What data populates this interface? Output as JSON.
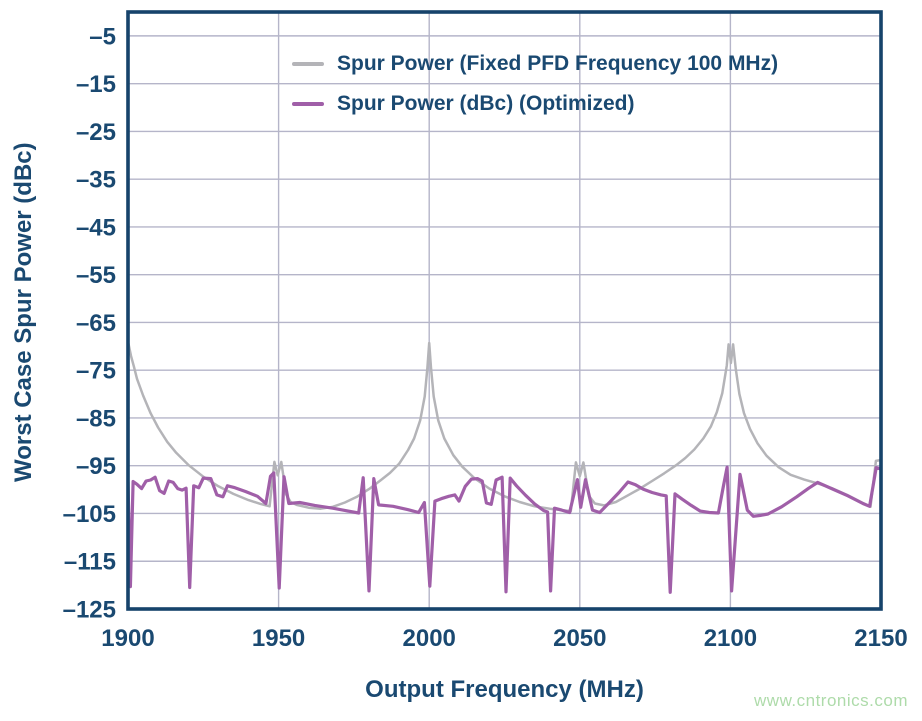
{
  "watermark": "www.cntronics.com",
  "colors": {
    "text": "#1a4971",
    "plot_border": "#16436b",
    "gridline": "#b5b5c9",
    "background": "#ffffff",
    "watermark": "#aedbaa",
    "series_fixed": "#b4b4b8",
    "series_optimized": "#a05fa8"
  },
  "chart_data": {
    "type": "line",
    "title": "",
    "xlabel": "Output Frequency (MHz)",
    "ylabel": "Worst Case Spur Power (dBc)",
    "xlim": [
      1900,
      2150
    ],
    "ylim": [
      -125,
      0
    ],
    "x_ticks": [
      1900,
      1950,
      2000,
      2050,
      2100,
      2150
    ],
    "y_ticks": [
      -5,
      -15,
      -25,
      -35,
      -45,
      -55,
      -65,
      -75,
      -85,
      -95,
      -105,
      -115,
      -125
    ],
    "grid": true,
    "legend_position": "top-inside",
    "series": [
      {
        "id": "fixed-pfd",
        "name": "Spur Power (Fixed PFD Frequency 100 MHz)",
        "color": "#b4b4b8",
        "line_width": 2.5,
        "points": [
          [
            1900,
            -69
          ],
          [
            1901,
            -72
          ],
          [
            1902,
            -74.3
          ],
          [
            1903,
            -76.8
          ],
          [
            1905,
            -80.3
          ],
          [
            1907.5,
            -84
          ],
          [
            1910,
            -87
          ],
          [
            1913,
            -90
          ],
          [
            1916,
            -92.3
          ],
          [
            1920,
            -94.8
          ],
          [
            1925,
            -97.3
          ],
          [
            1930,
            -99.3
          ],
          [
            1935,
            -100.9
          ],
          [
            1940,
            -102.2
          ],
          [
            1944,
            -103
          ],
          [
            1947,
            -103.5
          ],
          [
            1948.6,
            -94.2
          ],
          [
            1949.7,
            -97
          ],
          [
            1950.9,
            -94.2
          ],
          [
            1952.5,
            -101
          ],
          [
            1954,
            -102.6
          ],
          [
            1956,
            -103.2
          ],
          [
            1960,
            -103.8
          ],
          [
            1964,
            -104
          ],
          [
            1968,
            -103.6
          ],
          [
            1972,
            -102.7
          ],
          [
            1976,
            -101.5
          ],
          [
            1980,
            -99.9
          ],
          [
            1984,
            -98
          ],
          [
            1987,
            -96.5
          ],
          [
            1990,
            -94.6
          ],
          [
            1993,
            -91.7
          ],
          [
            1995,
            -89.3
          ],
          [
            1997,
            -85.5
          ],
          [
            1998.5,
            -80.5
          ],
          [
            1999.4,
            -74.5
          ],
          [
            2000,
            -69.3
          ],
          [
            2000.6,
            -74.5
          ],
          [
            2001.5,
            -80.5
          ],
          [
            2003,
            -85.5
          ],
          [
            2005,
            -89.3
          ],
          [
            2008,
            -92.8
          ],
          [
            2011,
            -95.2
          ],
          [
            2015,
            -97.6
          ],
          [
            2020,
            -99.8
          ],
          [
            2025,
            -101.4
          ],
          [
            2030,
            -102.6
          ],
          [
            2035,
            -103.5
          ],
          [
            2040,
            -104
          ],
          [
            2044,
            -104.3
          ],
          [
            2047,
            -104.5
          ],
          [
            2048.7,
            -94.3
          ],
          [
            2050,
            -97.2
          ],
          [
            2051.2,
            -94.3
          ],
          [
            2053,
            -101.3
          ],
          [
            2055,
            -102.9
          ],
          [
            2058,
            -103.3
          ],
          [
            2062,
            -102.6
          ],
          [
            2066,
            -101.2
          ],
          [
            2070,
            -99.8
          ],
          [
            2074,
            -98.2
          ],
          [
            2078,
            -96.6
          ],
          [
            2082,
            -94.9
          ],
          [
            2085,
            -93.4
          ],
          [
            2088,
            -91.6
          ],
          [
            2091,
            -89.3
          ],
          [
            2093.5,
            -86.8
          ],
          [
            2095.5,
            -83.8
          ],
          [
            2097.3,
            -79.8
          ],
          [
            2098.8,
            -74
          ],
          [
            2099.4,
            -69.6
          ],
          [
            2100.15,
            -73.5
          ],
          [
            2100.9,
            -69.6
          ],
          [
            2101.8,
            -74.8
          ],
          [
            2103,
            -80
          ],
          [
            2104.5,
            -84
          ],
          [
            2106.5,
            -87.3
          ],
          [
            2109,
            -90.3
          ],
          [
            2112,
            -92.9
          ],
          [
            2116,
            -95.3
          ],
          [
            2120,
            -96.9
          ],
          [
            2124.5,
            -97.9
          ],
          [
            2129,
            -98.7
          ],
          [
            2134,
            -99.8
          ],
          [
            2139,
            -101.2
          ],
          [
            2144,
            -102.8
          ],
          [
            2146.5,
            -103.6
          ],
          [
            2148.3,
            -94
          ],
          [
            2150,
            -93.8
          ]
        ]
      },
      {
        "id": "optimized",
        "name": "Spur Power (dBc) (Optimized)",
        "color": "#a05fa8",
        "line_width": 3.2,
        "points": [
          [
            1900,
            -98.4
          ],
          [
            1900.8,
            -120.3
          ],
          [
            1901.7,
            -98.3
          ],
          [
            1903,
            -98.9
          ],
          [
            1904.5,
            -99.8
          ],
          [
            1906,
            -98.2
          ],
          [
            1907.5,
            -98
          ],
          [
            1909,
            -97.4
          ],
          [
            1910.5,
            -100.2
          ],
          [
            1912,
            -100.8
          ],
          [
            1913.5,
            -98.2
          ],
          [
            1915,
            -98.5
          ],
          [
            1916.5,
            -99.8
          ],
          [
            1918,
            -100.1
          ],
          [
            1919.3,
            -99.7
          ],
          [
            1920.5,
            -120.5
          ],
          [
            1921.8,
            -99.2
          ],
          [
            1923.5,
            -99.6
          ],
          [
            1925,
            -97.6
          ],
          [
            1927.5,
            -97.7
          ],
          [
            1929.5,
            -101.1
          ],
          [
            1931.5,
            -101.5
          ],
          [
            1933,
            -99.2
          ],
          [
            1935.5,
            -99.6
          ],
          [
            1939,
            -100.4
          ],
          [
            1943,
            -101.4
          ],
          [
            1945.8,
            -102.9
          ],
          [
            1947.3,
            -97.2
          ],
          [
            1948.4,
            -96.5
          ],
          [
            1950.2,
            -120.6
          ],
          [
            1951.8,
            -97.3
          ],
          [
            1953.4,
            -102.9
          ],
          [
            1957,
            -102.7
          ],
          [
            1962,
            -103.3
          ],
          [
            1968,
            -103.9
          ],
          [
            1974,
            -104.6
          ],
          [
            1976.6,
            -104.9
          ],
          [
            1978.1,
            -97.5
          ],
          [
            1980,
            -121.2
          ],
          [
            1981.6,
            -97.7
          ],
          [
            1983.2,
            -103.2
          ],
          [
            1988,
            -103.5
          ],
          [
            1993,
            -104.2
          ],
          [
            1996.5,
            -104.8
          ],
          [
            1998.4,
            -102.7
          ],
          [
            2000.2,
            -120.2
          ],
          [
            2001.9,
            -102.4
          ],
          [
            2004,
            -101.9
          ],
          [
            2006.5,
            -101.4
          ],
          [
            2008.5,
            -101.1
          ],
          [
            2009.9,
            -102.4
          ],
          [
            2012,
            -99.3
          ],
          [
            2014,
            -97.8
          ],
          [
            2016,
            -97.7
          ],
          [
            2017.6,
            -98.2
          ],
          [
            2019,
            -102.8
          ],
          [
            2020.6,
            -103.1
          ],
          [
            2022.2,
            -98
          ],
          [
            2024.2,
            -97.4
          ],
          [
            2025.5,
            -121.4
          ],
          [
            2026.9,
            -97.6
          ],
          [
            2029,
            -99.2
          ],
          [
            2032,
            -101.2
          ],
          [
            2035,
            -103
          ],
          [
            2038,
            -104.4
          ],
          [
            2039.3,
            -104.7
          ],
          [
            2040.3,
            -121.2
          ],
          [
            2041.6,
            -103.9
          ],
          [
            2044,
            -104.3
          ],
          [
            2046.6,
            -104.8
          ],
          [
            2049.2,
            -97.9
          ],
          [
            2050.3,
            -103.7
          ],
          [
            2051.9,
            -97.9
          ],
          [
            2054.2,
            -104.3
          ],
          [
            2056.6,
            -104.8
          ],
          [
            2060,
            -102.6
          ],
          [
            2063,
            -100.6
          ],
          [
            2066,
            -98.4
          ],
          [
            2068.5,
            -99
          ],
          [
            2071,
            -99.9
          ],
          [
            2074,
            -100.6
          ],
          [
            2077,
            -101.1
          ],
          [
            2078.7,
            -101.3
          ],
          [
            2080,
            -121.5
          ],
          [
            2081.6,
            -100.9
          ],
          [
            2084,
            -102
          ],
          [
            2087,
            -103.3
          ],
          [
            2090,
            -104.5
          ],
          [
            2093,
            -104.8
          ],
          [
            2096,
            -104.9
          ],
          [
            2097.6,
            -99.5
          ],
          [
            2098.9,
            -95.3
          ],
          [
            2100.4,
            -121.2
          ],
          [
            2103.2,
            -96.8
          ],
          [
            2105.6,
            -104.3
          ],
          [
            2107.6,
            -105.6
          ],
          [
            2110,
            -105.4
          ],
          [
            2112.5,
            -105.1
          ],
          [
            2117,
            -103.6
          ],
          [
            2122,
            -101.5
          ],
          [
            2126,
            -99.7
          ],
          [
            2129,
            -98.5
          ],
          [
            2134,
            -99.9
          ],
          [
            2139,
            -101.3
          ],
          [
            2144,
            -102.9
          ],
          [
            2146.2,
            -103.5
          ],
          [
            2148.4,
            -95.4
          ],
          [
            2150,
            -95.7
          ]
        ]
      }
    ]
  }
}
